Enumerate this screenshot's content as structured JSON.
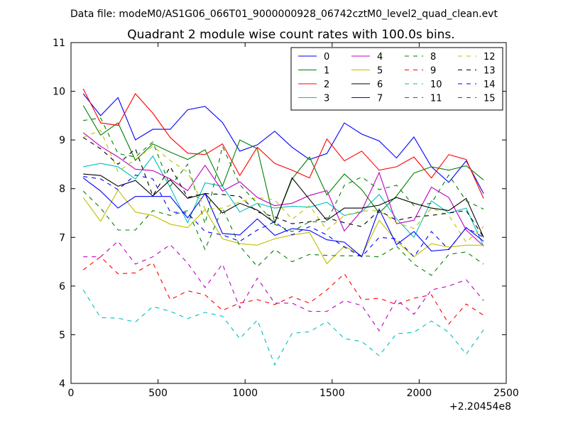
{
  "header": {
    "datafile": "Data file: modeM0/AS1G06_066T01_9000000928_06742cztM0_level2_quad_clean.evt"
  },
  "chart_data": {
    "type": "line",
    "title": "Quadrant 2 module wise count rates with 100.0s bins.",
    "xlabel": "",
    "ylabel": "",
    "x_offset_label": "+2.20454e8",
    "xlim": [
      0,
      2500
    ],
    "ylim": [
      4,
      11
    ],
    "xticks": [
      0,
      500,
      1000,
      1500,
      2000,
      2500
    ],
    "yticks": [
      4,
      5,
      6,
      7,
      8,
      9,
      10,
      11
    ],
    "grid": false,
    "legend_position": "top-right",
    "x": [
      70,
      170,
      270,
      370,
      470,
      570,
      670,
      770,
      870,
      970,
      1070,
      1170,
      1270,
      1370,
      1470,
      1570,
      1670,
      1770,
      1870,
      1970,
      2070,
      2170,
      2270,
      2370
    ],
    "series": [
      {
        "name": "0",
        "color": "#0000ff",
        "dash": "solid",
        "values": [
          9.95,
          9.5,
          9.87,
          9.0,
          9.22,
          9.22,
          9.62,
          9.69,
          9.36,
          8.77,
          8.9,
          9.18,
          8.85,
          8.6,
          8.72,
          9.35,
          9.12,
          8.98,
          8.63,
          9.06,
          8.45,
          8.13,
          8.57,
          7.9
        ]
      },
      {
        "name": "1",
        "color": "#008000",
        "dash": "solid",
        "values": [
          9.71,
          9.1,
          9.35,
          8.58,
          8.92,
          8.75,
          8.6,
          8.8,
          8.05,
          9.0,
          8.82,
          7.3,
          8.2,
          8.65,
          7.87,
          8.3,
          7.98,
          7.5,
          7.85,
          8.32,
          8.45,
          8.38,
          8.47,
          8.18
        ]
      },
      {
        "name": "2",
        "color": "#ff0000",
        "dash": "solid",
        "values": [
          10.05,
          9.35,
          9.3,
          9.95,
          9.55,
          9.05,
          8.73,
          8.7,
          8.92,
          8.27,
          8.85,
          8.52,
          8.38,
          8.22,
          9.02,
          8.57,
          8.77,
          8.38,
          8.45,
          8.65,
          8.22,
          8.7,
          8.6,
          7.8
        ]
      },
      {
        "name": "3",
        "color": "#00bfbf",
        "dash": "solid",
        "values": [
          8.45,
          8.52,
          8.45,
          8.2,
          8.67,
          8.02,
          7.3,
          8.12,
          8.05,
          7.52,
          7.7,
          7.6,
          7.64,
          7.62,
          7.72,
          7.45,
          7.52,
          7.88,
          7.38,
          7.0,
          7.75,
          7.5,
          7.6,
          6.82
        ]
      },
      {
        "name": "4",
        "color": "#bf00bf",
        "dash": "solid",
        "values": [
          9.15,
          8.87,
          8.65,
          8.4,
          8.37,
          8.2,
          7.96,
          8.48,
          7.95,
          8.14,
          7.82,
          7.65,
          7.7,
          7.86,
          7.96,
          7.13,
          7.55,
          8.33,
          7.28,
          7.35,
          8.03,
          7.82,
          7.15,
          6.82
        ]
      },
      {
        "name": "5",
        "color": "#bfbf00",
        "dash": "solid",
        "values": [
          7.82,
          7.33,
          7.97,
          7.52,
          7.45,
          7.27,
          7.2,
          7.57,
          6.97,
          6.87,
          6.84,
          6.97,
          7.05,
          7.1,
          6.46,
          6.82,
          6.62,
          7.35,
          6.92,
          6.6,
          6.87,
          6.8,
          6.84,
          6.84
        ]
      },
      {
        "name": "6",
        "color": "#000000",
        "dash": "solid",
        "values": [
          8.3,
          8.27,
          8.05,
          8.17,
          7.85,
          8.18,
          7.8,
          7.9,
          7.5,
          7.7,
          7.56,
          7.3,
          8.22,
          7.78,
          7.35,
          7.6,
          7.6,
          7.66,
          7.82,
          7.7,
          7.6,
          7.55,
          7.8,
          7.0
        ]
      },
      {
        "name": "7",
        "color": "#0000ff",
        "dash": "solid",
        "values": [
          8.22,
          7.95,
          7.6,
          7.84,
          7.84,
          7.84,
          7.4,
          7.9,
          7.08,
          7.05,
          7.38,
          7.04,
          7.18,
          7.14,
          6.95,
          6.9,
          6.6,
          7.58,
          6.85,
          7.12,
          6.72,
          6.75,
          7.2,
          6.92
        ]
      },
      {
        "name": "8",
        "color": "#008000",
        "dash": "dashed",
        "values": [
          7.95,
          7.6,
          7.15,
          7.15,
          7.55,
          7.45,
          7.55,
          6.75,
          7.6,
          6.82,
          6.4,
          6.75,
          6.5,
          6.65,
          6.63,
          6.62,
          6.62,
          6.6,
          6.82,
          6.45,
          6.22,
          6.65,
          6.7,
          6.45
        ]
      },
      {
        "name": "9",
        "color": "#ff0000",
        "dash": "dashed",
        "values": [
          6.33,
          6.6,
          6.25,
          6.27,
          6.48,
          5.72,
          5.9,
          5.82,
          5.5,
          5.65,
          5.72,
          5.62,
          5.78,
          5.65,
          5.92,
          6.25,
          5.72,
          5.75,
          5.62,
          5.75,
          5.82,
          5.22,
          5.63,
          5.4
        ]
      },
      {
        "name": "10",
        "color": "#00bfbf",
        "dash": "dashed",
        "values": [
          5.92,
          5.35,
          5.34,
          5.26,
          5.58,
          5.48,
          5.33,
          5.46,
          5.38,
          4.92,
          5.3,
          4.38,
          5.03,
          5.06,
          5.27,
          4.92,
          4.86,
          4.57,
          5.02,
          5.05,
          5.28,
          5.05,
          4.6,
          5.1
        ]
      },
      {
        "name": "11",
        "color": "#bf00bf",
        "dash": "dashed",
        "values": [
          6.6,
          6.6,
          6.92,
          6.45,
          6.6,
          6.85,
          6.47,
          5.97,
          6.45,
          5.55,
          6.16,
          5.65,
          5.65,
          5.48,
          5.48,
          5.7,
          5.6,
          5.08,
          5.72,
          5.42,
          5.92,
          6.0,
          6.13,
          5.7
        ]
      },
      {
        "name": "12",
        "color": "#bfbf00",
        "dash": "dashed",
        "values": [
          9.05,
          9.2,
          8.35,
          8.6,
          8.87,
          8.58,
          8.34,
          7.58,
          7.6,
          7.73,
          7.82,
          7.77,
          7.37,
          7.65,
          7.15,
          7.45,
          7.54,
          7.55,
          7.3,
          7.18,
          7.6,
          7.45,
          6.9,
          7.22
        ]
      },
      {
        "name": "13",
        "color": "#000000",
        "dash": "dashed",
        "values": [
          9.05,
          8.82,
          8.5,
          8.82,
          7.85,
          8.45,
          7.82,
          7.9,
          7.88,
          7.84,
          7.52,
          7.42,
          7.28,
          7.32,
          7.4,
          7.3,
          7.22,
          7.55,
          7.35,
          7.42,
          7.45,
          7.5,
          7.55,
          7.0
        ]
      },
      {
        "name": "14",
        "color": "#0000ff",
        "dash": "dashed",
        "values": [
          8.25,
          8.2,
          7.98,
          8.28,
          8.2,
          7.52,
          7.5,
          7.12,
          7.05,
          6.92,
          7.15,
          7.32,
          7.05,
          7.22,
          7.05,
          6.8,
          6.6,
          7.0,
          6.97,
          6.6,
          7.12,
          6.75,
          7.2,
          7.0
        ]
      },
      {
        "name": "15",
        "color": "#008000",
        "dash": "dashed",
        "values": [
          9.4,
          9.45,
          8.72,
          8.65,
          8.96,
          8.05,
          8.5,
          7.28,
          8.87,
          8.08,
          7.7,
          7.27,
          7.12,
          7.32,
          7.32,
          8.07,
          8.24,
          7.98,
          8.07,
          7.65,
          7.7,
          8.28,
          7.75,
          7.58
        ]
      }
    ]
  }
}
